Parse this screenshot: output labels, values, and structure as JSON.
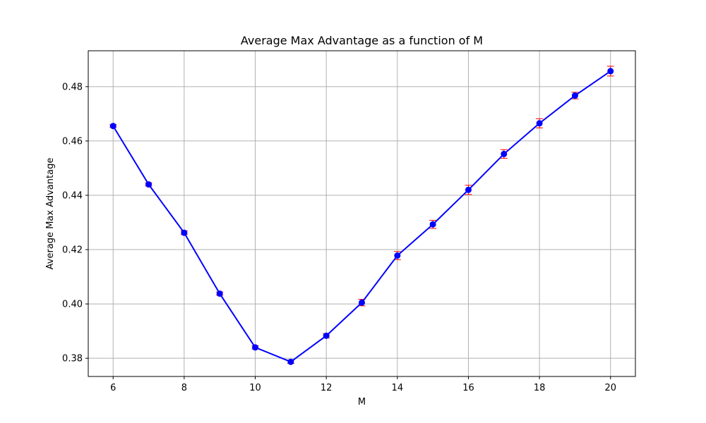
{
  "chart_data": {
    "type": "line",
    "title": "Average Max Advantage as a function of M",
    "xlabel": "M",
    "ylabel": "Average Max Advantage",
    "xlim": [
      5.3,
      20.7
    ],
    "ylim": [
      0.3733,
      0.4932
    ],
    "xticks": [
      6,
      8,
      10,
      12,
      14,
      16,
      18,
      20
    ],
    "yticks": [
      0.38,
      0.4,
      0.42,
      0.44,
      0.46,
      0.48
    ],
    "ytick_labels": [
      "0.38",
      "0.40",
      "0.42",
      "0.44",
      "0.46",
      "0.48"
    ],
    "grid": true,
    "series": [
      {
        "x": [
          6,
          7,
          8,
          9,
          10,
          11,
          12,
          13,
          14,
          15,
          16,
          17,
          18,
          19,
          20
        ],
        "y": [
          0.4655,
          0.444,
          0.4262,
          0.4038,
          0.384,
          0.3787,
          0.3883,
          0.4005,
          0.4178,
          0.4293,
          0.442,
          0.4552,
          0.4665,
          0.4767,
          0.4857
        ],
        "yerr": [
          0.0005,
          0.0006,
          0.0007,
          0.0006,
          0.0006,
          0.0006,
          0.0008,
          0.0012,
          0.0015,
          0.0015,
          0.0017,
          0.0016,
          0.0017,
          0.0012,
          0.0018
        ],
        "color": "#0000ff",
        "errorbar_color": "#ff0000"
      }
    ]
  }
}
